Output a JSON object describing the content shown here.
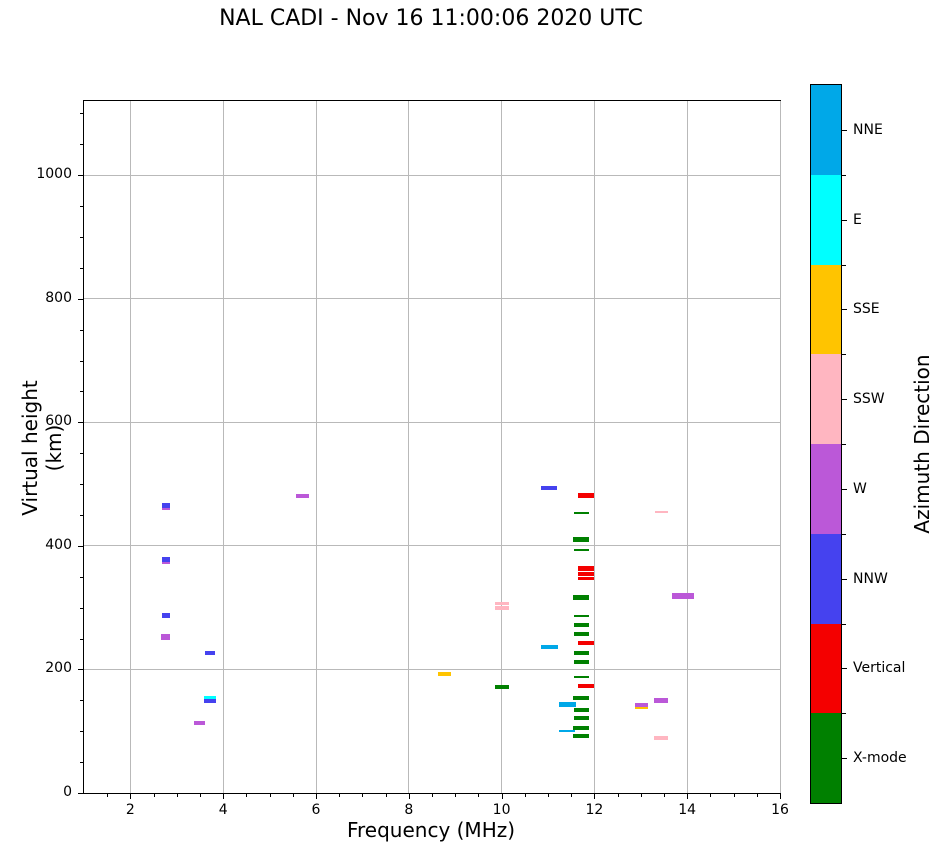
{
  "title": "NAL CADI - Nov 16 11:00:06 2020 UTC",
  "chart_data": {
    "type": "scatter",
    "title": "NAL CADI - Nov 16 11:00:06 2020 UTC",
    "xlabel": "Frequency (MHz)",
    "ylabel": "Virtual height (km)",
    "xlim": [
      1,
      16
    ],
    "ylim": [
      0,
      1120
    ],
    "xticks": [
      2,
      4,
      6,
      8,
      10,
      12,
      14,
      16
    ],
    "yticks": [
      0,
      200,
      400,
      600,
      800,
      1000
    ],
    "x_minor_step": 0.5,
    "y_minor_step": 50,
    "grid": true,
    "marker_style": "horizontal-dash",
    "legend_position": "right-colorbar",
    "colorbar": {
      "label": "Azimuth Direction",
      "categories": [
        {
          "label": "NNE",
          "color": "#00a8e8"
        },
        {
          "label": "E",
          "color": "#00ffff"
        },
        {
          "label": "SSE",
          "color": "#ffc400"
        },
        {
          "label": "SSW",
          "color": "#ffb6c1"
        },
        {
          "label": "W",
          "color": "#bb58d8"
        },
        {
          "label": "NNW",
          "color": "#4542ef"
        },
        {
          "label": "Vertical",
          "color": "#f40000"
        },
        {
          "label": "X-mode",
          "color": "#008000"
        }
      ]
    },
    "series_note": "points are [frequency_MHz, virtual_height_km, dash_width_px, dash_height_px]",
    "series": [
      {
        "name": "NNE",
        "color": "#00a8e8",
        "points": [
          [
            11.03,
            237,
            17,
            4
          ],
          [
            11.41,
            143,
            17,
            5
          ],
          [
            11.41,
            101,
            16,
            2
          ]
        ]
      },
      {
        "name": "E",
        "color": "#00ffff",
        "points": [
          [
            3.71,
            155,
            12,
            3
          ]
        ]
      },
      {
        "name": "SSE",
        "color": "#ffc400",
        "points": [
          [
            8.77,
            192,
            13,
            4
          ],
          [
            13.01,
            138,
            13,
            3
          ]
        ]
      },
      {
        "name": "SSW",
        "color": "#ffb6c1",
        "points": [
          [
            10.0,
            307,
            14,
            3
          ],
          [
            10.0,
            299,
            14,
            4
          ],
          [
            13.45,
            454,
            13,
            2
          ],
          [
            13.44,
            89,
            14,
            4
          ]
        ]
      },
      {
        "name": "W",
        "color": "#bb58d8",
        "points": [
          [
            2.76,
            461,
            8,
            3
          ],
          [
            2.76,
            373,
            8,
            3
          ],
          [
            2.76,
            253,
            9,
            6
          ],
          [
            3.48,
            114,
            11,
            4
          ],
          [
            5.7,
            481,
            13,
            4
          ],
          [
            13.44,
            149,
            14,
            5
          ],
          [
            13.01,
            142,
            13,
            4
          ],
          [
            13.9,
            319,
            22,
            6
          ]
        ]
      },
      {
        "name": "NNW",
        "color": "#4542ef",
        "points": [
          [
            2.76,
            466,
            8,
            5
          ],
          [
            2.76,
            378,
            8,
            5
          ],
          [
            2.76,
            288,
            8,
            5
          ],
          [
            3.71,
            227,
            10,
            4
          ],
          [
            3.71,
            149,
            12,
            4
          ],
          [
            11.03,
            493,
            16,
            4
          ]
        ]
      },
      {
        "name": "Vertical",
        "color": "#f40000",
        "points": [
          [
            11.82,
            482,
            16,
            5
          ],
          [
            11.82,
            363,
            16,
            5
          ],
          [
            11.82,
            354,
            16,
            4
          ],
          [
            11.82,
            347,
            16,
            3
          ],
          [
            11.82,
            242,
            16,
            4
          ],
          [
            11.82,
            173,
            16,
            4
          ]
        ]
      },
      {
        "name": "X-mode",
        "color": "#008000",
        "points": [
          [
            10.0,
            171,
            14,
            4
          ],
          [
            11.72,
            453,
            15,
            2
          ],
          [
            11.72,
            410,
            16,
            5
          ],
          [
            11.72,
            393,
            15,
            2
          ],
          [
            11.72,
            317,
            16,
            5
          ],
          [
            11.72,
            287,
            15,
            2
          ],
          [
            11.72,
            272,
            15,
            4
          ],
          [
            11.72,
            257,
            15,
            4
          ],
          [
            11.72,
            227,
            15,
            4
          ],
          [
            11.72,
            212,
            15,
            4
          ],
          [
            11.72,
            187,
            15,
            2
          ],
          [
            11.72,
            154,
            16,
            4
          ],
          [
            11.72,
            135,
            15,
            4
          ],
          [
            11.72,
            121,
            15,
            4
          ],
          [
            11.72,
            106,
            16,
            4
          ],
          [
            11.72,
            92,
            16,
            4
          ]
        ]
      }
    ]
  }
}
